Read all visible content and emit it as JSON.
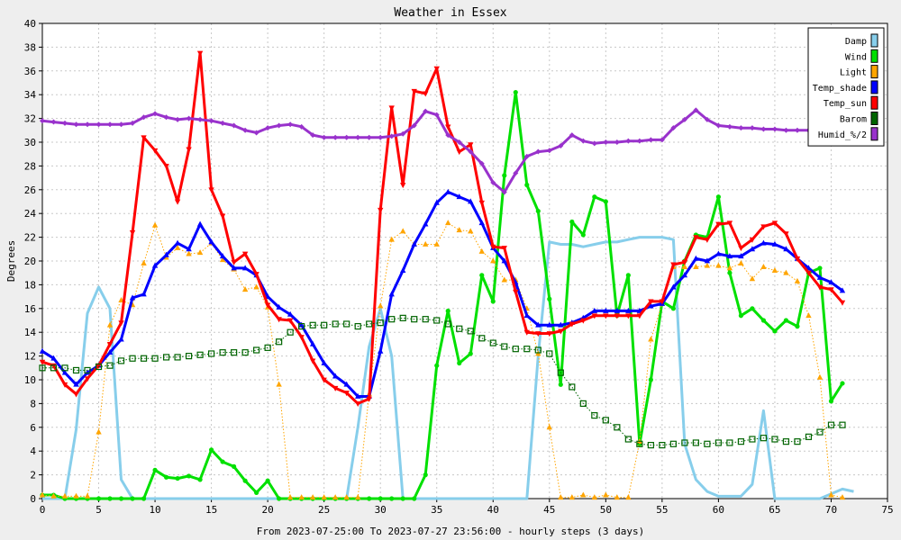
{
  "chart_data": {
    "type": "line",
    "title": "Weather in Essex",
    "xlabel": "From 2023-07-25:00 To 2023-07-27 23:56:00 - hourly steps (3 days)",
    "ylabel": "Degrees",
    "xlim": [
      0,
      75
    ],
    "ylim": [
      0,
      40
    ],
    "x_ticks": [
      0,
      5,
      10,
      15,
      20,
      25,
      30,
      35,
      40,
      45,
      50,
      55,
      60,
      65,
      70,
      75
    ],
    "y_ticks": [
      0,
      2,
      4,
      6,
      8,
      10,
      12,
      14,
      16,
      18,
      20,
      22,
      24,
      26,
      28,
      30,
      32,
      34,
      36,
      38,
      40
    ],
    "grid": true,
    "legend_position": "top-right",
    "background_color": "#eeeeee",
    "plot_background_color": "#ffffff",
    "series": [
      {
        "name": "Damp",
        "color": "#87ceeb",
        "marker": "none",
        "style": "solid",
        "values": [
          0,
          0,
          0,
          5.8,
          15.6,
          17.8,
          16.0,
          1.6,
          0,
          0,
          0,
          0,
          0,
          0,
          0,
          0,
          0,
          0,
          0,
          0,
          0,
          0,
          0,
          0,
          0,
          0,
          0,
          0,
          6.0,
          12.8,
          16.0,
          12.0,
          0,
          0,
          0,
          0,
          0,
          0,
          0,
          0,
          0,
          0,
          0,
          0,
          12.0,
          21.6,
          21.4,
          21.4,
          21.2,
          21.4,
          21.6,
          21.6,
          21.8,
          22.0,
          22.0,
          22.0,
          21.8,
          4.6,
          1.6,
          0.6,
          0.2,
          0.2,
          0.2,
          1.2,
          7.4,
          0,
          0,
          0,
          0,
          0,
          0.4,
          0.8,
          0.6
        ]
      },
      {
        "name": "Wind",
        "color": "#00e000",
        "marker": "circle",
        "style": "solid",
        "values": [
          0.3,
          0.3,
          0,
          0,
          0,
          0,
          0,
          0,
          0,
          0,
          2.4,
          1.8,
          1.7,
          1.9,
          1.6,
          4.1,
          3.1,
          2.7,
          1.5,
          0.5,
          1.5,
          0,
          0,
          0,
          0,
          0,
          0,
          0,
          0,
          0,
          0,
          0,
          0,
          0,
          2.0,
          11.2,
          15.8,
          11.4,
          12.2,
          18.8,
          16.6,
          27.2,
          34.2,
          26.4,
          24.2,
          16.8,
          9.6,
          23.3,
          22.2,
          25.4,
          25.0,
          15.4,
          18.8,
          4.6,
          10.0,
          16.6,
          16.0,
          20.0,
          22.2,
          22.0,
          25.4,
          19.0,
          15.4,
          16.0,
          15.0,
          14.1,
          15.0,
          14.5,
          19.0,
          19.4,
          8.2,
          9.7
        ]
      },
      {
        "name": "Light",
        "color": "#ffa500",
        "marker": "triangle-up",
        "style": "dotted",
        "values": [
          0.3,
          0.2,
          0.2,
          0.2,
          0.2,
          5.6,
          14.6,
          16.7,
          16.3,
          19.8,
          23.0,
          20.3,
          21.1,
          20.6,
          20.7,
          21.5,
          20.1,
          19.3,
          17.6,
          17.8,
          16.1,
          9.6,
          0.1,
          0.1,
          0.1,
          0.1,
          0.1,
          0.1,
          0.1,
          8.8,
          16.2,
          21.8,
          22.5,
          21.4,
          21.4,
          21.4,
          23.2,
          22.6,
          22.5,
          20.8,
          20.0,
          18.4,
          18.4,
          16.0,
          12.2,
          6.0,
          0.1,
          0.1,
          0.3,
          0.1,
          0.3,
          0.1,
          0.1,
          4.8,
          13.4,
          16.4,
          19.5,
          19.5,
          19.5,
          19.6,
          19.6,
          19.4,
          19.8,
          18.5,
          19.5,
          19.2,
          19.0,
          18.3,
          15.4,
          10.2,
          0.3,
          0.1
        ]
      },
      {
        "name": "Temp_shade",
        "color": "#0000ff",
        "marker": "triangle-up",
        "style": "solid",
        "values": [
          12.4,
          11.8,
          10.6,
          9.6,
          10.6,
          11.2,
          12.3,
          13.4,
          16.9,
          17.2,
          19.6,
          20.5,
          21.5,
          21.0,
          23.1,
          21.6,
          20.4,
          19.4,
          19.4,
          18.8,
          17.0,
          16.1,
          15.5,
          14.6,
          13.0,
          11.4,
          10.3,
          9.6,
          8.6,
          8.6,
          12.4,
          17.2,
          19.2,
          21.4,
          23.1,
          24.9,
          25.8,
          25.4,
          25.0,
          23.2,
          21.1,
          20.0,
          18.2,
          15.4,
          14.6,
          14.6,
          14.6,
          14.8,
          15.2,
          15.8,
          15.8,
          15.8,
          15.8,
          15.8,
          16.2,
          16.4,
          17.8,
          18.8,
          20.2,
          20.0,
          20.6,
          20.4,
          20.4,
          21.0,
          21.5,
          21.4,
          21.0,
          20.2,
          19.4,
          18.6,
          18.2,
          17.5
        ]
      },
      {
        "name": "Temp_sun",
        "color": "#ff0000",
        "marker": "triangle-down",
        "style": "solid",
        "values": [
          11.5,
          11.2,
          9.6,
          8.8,
          10.1,
          11.2,
          13.0,
          14.8,
          22.4,
          30.4,
          29.3,
          28.0,
          25.0,
          29.4,
          37.5,
          26.0,
          23.8,
          19.9,
          20.6,
          18.9,
          16.3,
          15.1,
          15.0,
          13.6,
          11.6,
          10.0,
          9.3,
          8.9,
          8.0,
          8.4,
          24.3,
          32.9,
          26.4,
          34.3,
          34.1,
          36.2,
          31.3,
          29.2,
          29.8,
          24.9,
          21.2,
          21.1,
          17.4,
          14.0,
          13.9,
          13.9,
          14.1,
          14.7,
          15.0,
          15.4,
          15.4,
          15.4,
          15.4,
          15.4,
          16.6,
          16.6,
          19.7,
          19.9,
          22.0,
          21.8,
          23.1,
          23.2,
          21.1,
          21.8,
          22.9,
          23.2,
          22.3,
          20.2,
          19.0,
          17.8,
          17.6,
          16.5
        ]
      },
      {
        "name": "Barom",
        "color": "#006400",
        "marker": "square-open",
        "style": "dotted",
        "values": [
          11.0,
          11.0,
          11.0,
          10.8,
          10.8,
          11.1,
          11.2,
          11.6,
          11.8,
          11.8,
          11.8,
          11.9,
          11.9,
          12.0,
          12.1,
          12.2,
          12.3,
          12.3,
          12.3,
          12.5,
          12.7,
          13.2,
          14.0,
          14.5,
          14.6,
          14.6,
          14.7,
          14.7,
          14.5,
          14.7,
          14.8,
          15.1,
          15.2,
          15.1,
          15.1,
          15.0,
          14.7,
          14.3,
          14.1,
          13.5,
          13.1,
          12.8,
          12.6,
          12.6,
          12.5,
          12.2,
          10.6,
          9.4,
          8.0,
          7.0,
          6.6,
          6.0,
          5.0,
          4.6,
          4.5,
          4.5,
          4.6,
          4.7,
          4.7,
          4.6,
          4.7,
          4.7,
          4.8,
          5.0,
          5.1,
          5.0,
          4.8,
          4.8,
          5.2,
          5.6,
          6.2,
          6.2
        ]
      },
      {
        "name": "Humid_%/2",
        "color": "#9932cc",
        "marker": "diamond",
        "style": "solid",
        "values": [
          31.8,
          31.7,
          31.6,
          31.5,
          31.5,
          31.5,
          31.5,
          31.5,
          31.6,
          32.1,
          32.4,
          32.1,
          31.9,
          32.0,
          31.9,
          31.8,
          31.6,
          31.4,
          31.0,
          30.8,
          31.2,
          31.4,
          31.5,
          31.3,
          30.6,
          30.4,
          30.4,
          30.4,
          30.4,
          30.4,
          30.4,
          30.5,
          30.7,
          31.4,
          32.6,
          32.3,
          30.6,
          30.0,
          29.2,
          28.2,
          26.6,
          25.8,
          27.4,
          28.8,
          29.2,
          29.3,
          29.7,
          30.6,
          30.1,
          29.9,
          30.0,
          30.0,
          30.1,
          30.1,
          30.2,
          30.2,
          31.2,
          31.9,
          32.7,
          31.9,
          31.4,
          31.3,
          31.2,
          31.2,
          31.1,
          31.1,
          31.0,
          31.0,
          31.0,
          31.2,
          31.1,
          31.2
        ]
      }
    ]
  }
}
